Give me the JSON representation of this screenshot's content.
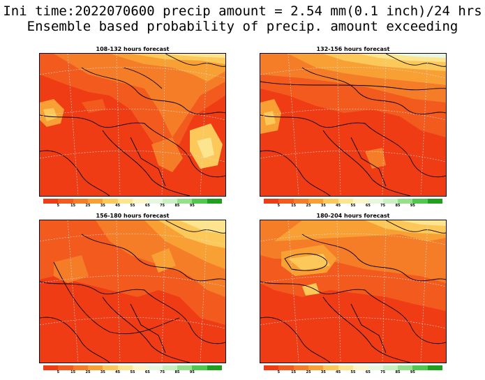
{
  "title_line1": "Ini time:2022070600 precip amount = 2.54 mm(0.1 inch)/24 hrs",
  "title_line2": "Ensemble based probability of precip. amount exceeding",
  "panels": [
    {
      "title": "108-132 hours forecast"
    },
    {
      "title": "132-156 hours forecast"
    },
    {
      "title": "156-180 hours forecast"
    },
    {
      "title": "180-204 hours forecast"
    }
  ],
  "colorbar": {
    "labels": [
      "5",
      "15",
      "25",
      "35",
      "45",
      "55",
      "65",
      "75",
      "85",
      "95"
    ],
    "colors": [
      "#f03c14",
      "#f25a1e",
      "#f57d28",
      "#f8a034",
      "#fcc85a",
      "#fde48e",
      "#fdf5c8",
      "#e8f8e0",
      "#c8f0c0",
      "#96e08c",
      "#50c850",
      "#1ea01e"
    ]
  }
}
